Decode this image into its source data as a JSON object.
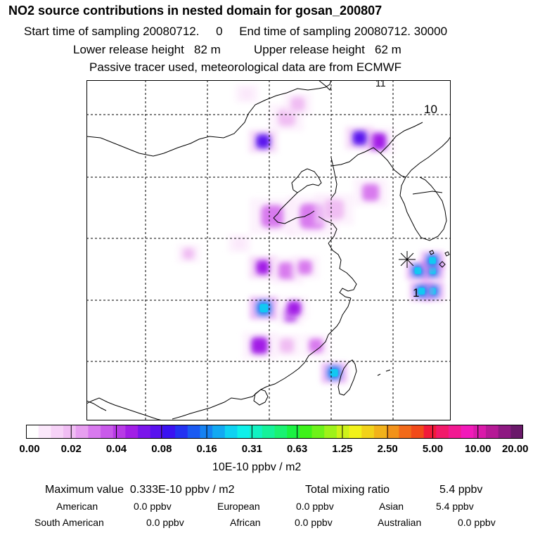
{
  "header": {
    "title": "NO2 source contributions in nested domain for gosan_200807",
    "start_label": "Start time of sampling 20080712.",
    "start_value": "0",
    "end_label": "End time of sampling 20080712. 30000",
    "lower_label": "Lower release height",
    "lower_value": "82 m",
    "upper_label": "Upper release height",
    "upper_value": "62 m",
    "note": "Passive tracer used, meteorological data are from ECMWF"
  },
  "map": {
    "contour_labels": [
      "10",
      "1"
    ],
    "top_mark": "11",
    "station_marker": "gosan-station",
    "plumes": [
      {
        "lon_frac": 0.475,
        "lat_frac": 0.78,
        "intensity": 0.5,
        "size": 1.2
      },
      {
        "lon_frac": 0.55,
        "lat_frac": 0.78,
        "intensity": 0.25,
        "size": 1.0
      },
      {
        "lon_frac": 0.487,
        "lat_frac": 0.67,
        "intensity": 0.9,
        "size": 1.0
      },
      {
        "lon_frac": 0.56,
        "lat_frac": 0.69,
        "intensity": 0.55,
        "size": 0.9
      },
      {
        "lon_frac": 0.63,
        "lat_frac": 0.78,
        "intensity": 0.3,
        "size": 1.0
      },
      {
        "lon_frac": 0.485,
        "lat_frac": 0.55,
        "intensity": 0.65,
        "size": 1.0
      },
      {
        "lon_frac": 0.55,
        "lat_frac": 0.56,
        "intensity": 0.45,
        "size": 1.2
      },
      {
        "lon_frac": 0.6,
        "lat_frac": 0.55,
        "intensity": 0.4,
        "size": 1.0
      },
      {
        "lon_frac": 0.62,
        "lat_frac": 0.4,
        "intensity": 0.35,
        "size": 1.8
      },
      {
        "lon_frac": 0.51,
        "lat_frac": 0.4,
        "intensity": 0.3,
        "size": 1.6
      },
      {
        "lon_frac": 0.68,
        "lat_frac": 0.38,
        "intensity": 0.25,
        "size": 1.4
      },
      {
        "lon_frac": 0.78,
        "lat_frac": 0.33,
        "intensity": 0.3,
        "size": 1.2
      },
      {
        "lon_frac": 0.8,
        "lat_frac": 0.18,
        "intensity": 0.6,
        "size": 1.2
      },
      {
        "lon_frac": 0.485,
        "lat_frac": 0.18,
        "intensity": 0.7,
        "size": 1.0
      },
      {
        "lon_frac": 0.57,
        "lat_frac": 0.67,
        "intensity": 0.5,
        "size": 1.0
      },
      {
        "lon_frac": 0.75,
        "lat_frac": 0.17,
        "intensity": 0.7,
        "size": 1.0
      },
      {
        "lon_frac": 0.28,
        "lat_frac": 0.51,
        "intensity": 0.15,
        "size": 0.8
      },
      {
        "lon_frac": 0.42,
        "lat_frac": 0.48,
        "intensity": 0.12,
        "size": 0.8
      },
      {
        "lon_frac": 0.55,
        "lat_frac": 0.11,
        "intensity": 0.15,
        "size": 1.2
      },
      {
        "lon_frac": 0.58,
        "lat_frac": 0.07,
        "intensity": 0.2,
        "size": 1.0
      },
      {
        "lon_frac": 0.44,
        "lat_frac": 0.04,
        "intensity": 0.08,
        "size": 0.8
      },
      {
        "lon_frac": 0.68,
        "lat_frac": 0.86,
        "intensity": 0.9,
        "size": 0.9
      },
      {
        "lon_frac": 0.95,
        "lat_frac": 0.62,
        "intensity": 0.95,
        "size": 0.8
      },
      {
        "lon_frac": 0.92,
        "lat_frac": 0.62,
        "intensity": 0.9,
        "size": 0.8
      },
      {
        "lon_frac": 0.95,
        "lat_frac": 0.56,
        "intensity": 0.85,
        "size": 0.8
      },
      {
        "lon_frac": 0.91,
        "lat_frac": 0.56,
        "intensity": 0.85,
        "size": 0.8
      },
      {
        "lon_frac": 0.95,
        "lat_frac": 0.53,
        "intensity": 0.85,
        "size": 0.8
      }
    ]
  },
  "colorbar": {
    "ticks": [
      "0.00",
      "0.02",
      "0.04",
      "0.08",
      "0.16",
      "0.31",
      "0.63",
      "1.25",
      "2.50",
      "5.00",
      "10.00",
      "20.00"
    ],
    "unit": "10E-10 ppbv / m2",
    "colors": [
      "#ffffff",
      "#fbe8fb",
      "#f6d2f7",
      "#f0bdf3",
      "#e79ff0",
      "#d87aee",
      "#c95aea",
      "#b83be6",
      "#a21fe6",
      "#7b16ea",
      "#5a12ee",
      "#3a12f2",
      "#2332f2",
      "#1b5af2",
      "#1582f2",
      "#12a9f2",
      "#0fd2f2",
      "#0ff0ea",
      "#12f2c2",
      "#15f29a",
      "#1af272",
      "#1af242",
      "#3ef21a",
      "#6ef21a",
      "#9ef21a",
      "#cef21a",
      "#f2f21a",
      "#f2d21a",
      "#f2b21a",
      "#f2921a",
      "#f26a1a",
      "#f24a1a",
      "#f21a3a",
      "#f21a6a",
      "#f21a92",
      "#f21aba",
      "#da1aaa",
      "#b61a96",
      "#8e1a82",
      "#6a1a6a"
    ]
  },
  "summary": {
    "max_label": "Maximum value",
    "max_value": "0.333E-10 ppbv / m2",
    "total_label": "Total mixing ratio",
    "total_value": "5.4 ppbv",
    "sources_row1": [
      {
        "name": "American",
        "value": "0.0 ppbv"
      },
      {
        "name": "European",
        "value": "0.0 ppbv"
      },
      {
        "name": "Asian",
        "value": "5.4 ppbv"
      }
    ],
    "sources_row2": [
      {
        "name": "South American",
        "value": "0.0 ppbv"
      },
      {
        "name": "African",
        "value": "0.0 ppbv"
      },
      {
        "name": "Australian",
        "value": "0.0 ppbv"
      }
    ]
  }
}
